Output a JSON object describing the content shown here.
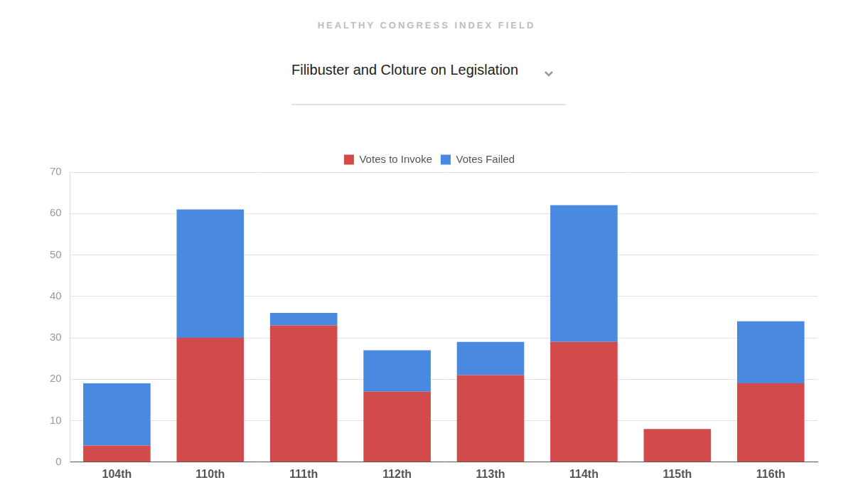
{
  "header": "HEALTHY CONGRESS INDEX FIELD",
  "chart_data": {
    "type": "bar",
    "title": "Filibuster and Cloture on Legislation",
    "categories": [
      "104th",
      "110th",
      "111th",
      "112th",
      "113th",
      "114th",
      "115th",
      "116th"
    ],
    "series": [
      {
        "name": "Votes to Invoke",
        "color": "#d34a4b",
        "values": [
          4,
          30,
          33,
          17,
          21,
          29,
          8,
          19
        ]
      },
      {
        "name": "Votes Failed",
        "color": "#4a89e0",
        "values": [
          15,
          31,
          3,
          10,
          8,
          33,
          0,
          15
        ]
      }
    ],
    "stacked": true,
    "ylim": [
      0,
      70
    ],
    "yticks": [
      0,
      10,
      20,
      30,
      40,
      50,
      60,
      70
    ],
    "grid": true,
    "legend": "top"
  }
}
